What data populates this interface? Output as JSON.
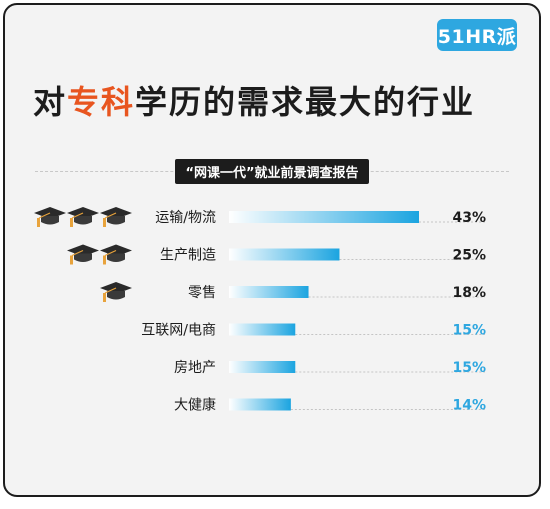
{
  "brand": {
    "logo_text": "51HR派",
    "accent_color": "#2ea7e0"
  },
  "header": {
    "title_prefix": "对",
    "title_accent": "专科",
    "title_suffix": "学历的需求最大的行业",
    "accent_color": "#e8551f"
  },
  "subtitle": "“网课一代”就业前景调查报告",
  "chart_data": {
    "type": "bar",
    "orientation": "horizontal",
    "categories": [
      "运输/物流",
      "生产制造",
      "零售",
      "互联网/电商",
      "房地产",
      "大健康"
    ],
    "values": [
      43,
      25,
      18,
      15,
      15,
      14
    ],
    "value_labels": [
      "43%",
      "25%",
      "18%",
      "15%",
      "15%",
      "14%"
    ],
    "label_colors": [
      "#1c1c1c",
      "#1c1c1c",
      "#1c1c1c",
      "#2ea7e0",
      "#2ea7e0",
      "#2ea7e0"
    ],
    "grad_caps": [
      3,
      2,
      1,
      0,
      0,
      0
    ],
    "bar_gradient": [
      "#ffffff",
      "#1ba4e0"
    ],
    "grid": false
  }
}
